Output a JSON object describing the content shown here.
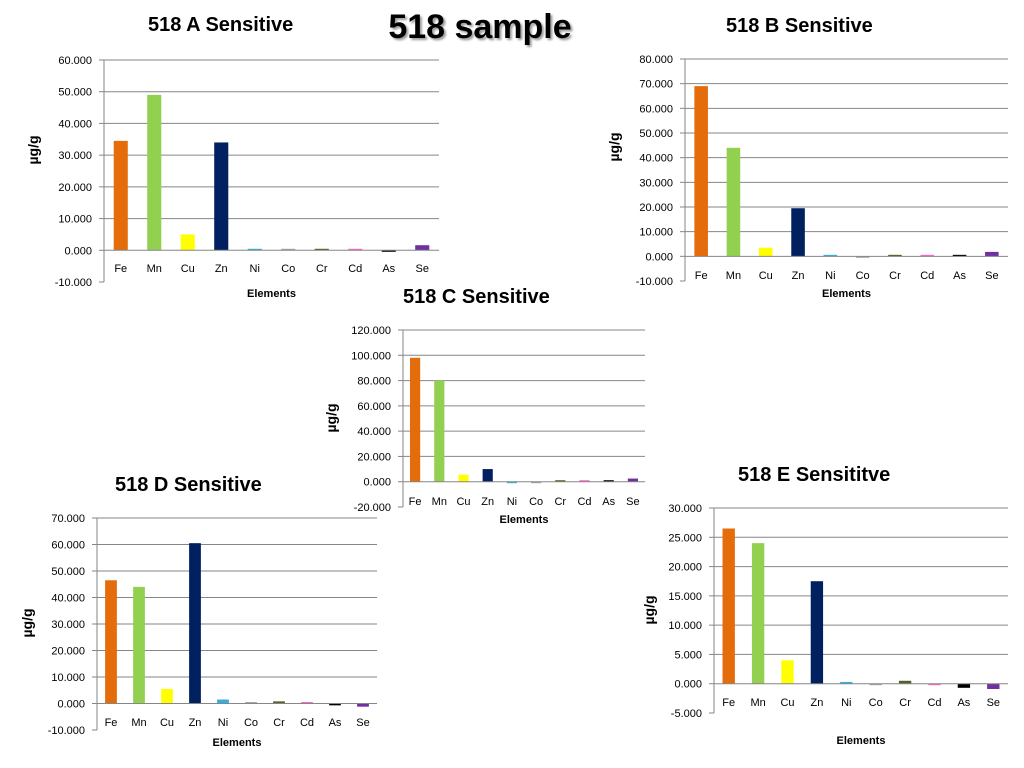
{
  "slide_title": "518 sample",
  "chart_data": [
    {
      "type": "bar",
      "title": "518 A Sensitive",
      "xlabel": "Elements",
      "ylabel": "µg/g",
      "ylim": [
        -10,
        60
      ],
      "yticks": [
        "60.000",
        "50.000",
        "40.000",
        "30.000",
        "20.000",
        "10.000",
        "0.000",
        "-10.000"
      ],
      "categories": [
        "Fe",
        "Mn",
        "Cu",
        "Zn",
        "Ni",
        "Co",
        "Cr",
        "Cd",
        "As",
        "Se"
      ],
      "values": [
        34.5,
        49,
        5,
        34,
        0,
        0.3,
        0.4,
        0.2,
        -0.3,
        1.6
      ],
      "grid": true,
      "legend": "none"
    },
    {
      "type": "bar",
      "title": "518 B Sensitive",
      "xlabel": "Elements",
      "ylabel": "µg/g",
      "ylim": [
        -10,
        80
      ],
      "yticks": [
        "80.000",
        "70.000",
        "60.000",
        "50.000",
        "40.000",
        "30.000",
        "20.000",
        "10.000",
        "0.000",
        "-10.000"
      ],
      "categories": [
        "Fe",
        "Mn",
        "Cu",
        "Zn",
        "Ni",
        "Co",
        "Cr",
        "Cd",
        "As",
        "Se"
      ],
      "values": [
        69,
        44,
        3.5,
        19.5,
        0,
        -0.2,
        0.6,
        0.1,
        0.3,
        1.8
      ],
      "grid": true,
      "legend": "none"
    },
    {
      "type": "bar",
      "title": "518 C Sensitive",
      "xlabel": "Elements",
      "ylabel": "µg/g",
      "ylim": [
        -20,
        120
      ],
      "yticks": [
        "120.000",
        "100.000",
        "80.000",
        "60.000",
        "40.000",
        "20.000",
        "0.000",
        "-20.000"
      ],
      "categories": [
        "Fe",
        "Mn",
        "Cu",
        "Zn",
        "Ni",
        "Co",
        "Cr",
        "Cd",
        "As",
        "Se"
      ],
      "values": [
        98,
        80,
        5.5,
        10,
        -1,
        -0.5,
        0.8,
        0.2,
        0.7,
        2.5
      ],
      "grid": true,
      "legend": "none"
    },
    {
      "type": "bar",
      "title": "518 D Sensitive",
      "xlabel": "Elements",
      "ylabel": "µg/g",
      "ylim": [
        -10,
        70
      ],
      "yticks": [
        "70.000",
        "60.000",
        "50.000",
        "40.000",
        "30.000",
        "20.000",
        "10.000",
        "0.000",
        "-10.000"
      ],
      "categories": [
        "Fe",
        "Mn",
        "Cu",
        "Zn",
        "Ni",
        "Co",
        "Cr",
        "Cd",
        "As",
        "Se"
      ],
      "values": [
        46.5,
        44,
        5.5,
        60.5,
        1.5,
        0.2,
        0.8,
        0.3,
        -0.7,
        -1.2
      ],
      "grid": true,
      "legend": "none"
    },
    {
      "type": "bar",
      "title": "518 E Sensititve",
      "xlabel": "Elements",
      "ylabel": "µg/g",
      "ylim": [
        -5,
        30
      ],
      "yticks": [
        "30.000",
        "25.000",
        "20.000",
        "15.000",
        "10.000",
        "5.000",
        "0.000",
        "-5.000"
      ],
      "categories": [
        "Fe",
        "Mn",
        "Cu",
        "Zn",
        "Ni",
        "Co",
        "Cr",
        "Cd",
        "As",
        "Se"
      ],
      "values": [
        26.5,
        24,
        4,
        17.5,
        0.3,
        -0.1,
        0.5,
        -0.1,
        -0.7,
        -0.9
      ],
      "grid": true,
      "legend": "none"
    }
  ],
  "colors": {
    "Fe": "#e46c0a",
    "Mn": "#92d050",
    "Cu": "#ffff00",
    "Zn": "#002060",
    "Ni": "#31b0e0",
    "Co": "#a6a6a6",
    "Cr": "#4f6228",
    "Cd": "#ff66cc",
    "As": "#000000",
    "Se": "#7030a0",
    "grid": "#868686"
  }
}
